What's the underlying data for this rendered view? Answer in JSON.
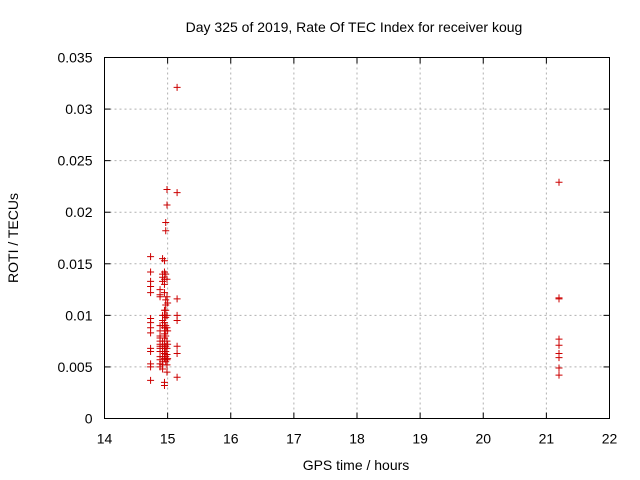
{
  "chart_data": {
    "type": "scatter",
    "title": "Day 325 of 2019, Rate Of TEC Index for receiver koug",
    "xlabel": "GPS time / hours",
    "ylabel": "ROTI / TECUs",
    "xlim": [
      14,
      22
    ],
    "ylim": [
      0,
      0.035
    ],
    "grid": true,
    "marker": "+",
    "color": "#cc0000",
    "x_ticks": [
      14,
      15,
      16,
      17,
      18,
      19,
      20,
      21,
      22
    ],
    "x_tick_labels": [
      "14",
      "15",
      "16",
      "17",
      "18",
      "19",
      "20",
      "21",
      "22"
    ],
    "y_ticks": [
      0,
      0.005,
      0.01,
      0.015,
      0.02,
      0.025,
      0.03,
      0.035
    ],
    "y_tick_labels": [
      "0",
      "0.005",
      "0.01",
      "0.015",
      "0.02",
      "0.025",
      "0.03",
      "0.035"
    ],
    "series": [
      {
        "name": "koug",
        "x": [
          14.73,
          14.73,
          14.73,
          14.73,
          14.73,
          14.73,
          14.73,
          14.73,
          14.73,
          14.73,
          14.73,
          14.73,
          14.73,
          14.73,
          14.88,
          14.88,
          14.88,
          14.88,
          14.88,
          14.88,
          14.88,
          14.88,
          14.88,
          14.88,
          14.88,
          14.88,
          14.88,
          14.88,
          14.88,
          14.88,
          14.92,
          14.92,
          14.92,
          14.92,
          14.92,
          14.92,
          14.92,
          14.92,
          14.92,
          14.92,
          14.92,
          14.92,
          14.92,
          14.92,
          14.95,
          14.95,
          14.95,
          14.95,
          14.95,
          14.95,
          14.95,
          14.95,
          14.95,
          14.95,
          14.95,
          14.95,
          14.95,
          14.95,
          14.95,
          14.95,
          14.95,
          14.97,
          14.97,
          14.97,
          14.97,
          14.97,
          14.97,
          14.97,
          14.97,
          14.97,
          14.97,
          14.97,
          14.97,
          14.97,
          14.97,
          14.99,
          14.99,
          14.99,
          14.99,
          14.99,
          14.99,
          14.99,
          14.99,
          14.99,
          14.99,
          14.99,
          14.99,
          15.0,
          15.0,
          15.0,
          15.0,
          15.15,
          15.15,
          15.15,
          15.15,
          15.15,
          15.15,
          15.15,
          15.15,
          21.2,
          21.2,
          21.2,
          21.2,
          21.2,
          21.2,
          21.2,
          21.2,
          21.2
        ],
        "y": [
          0.0157,
          0.0142,
          0.0133,
          0.0128,
          0.0122,
          0.0097,
          0.0093,
          0.0088,
          0.0083,
          0.0068,
          0.0065,
          0.0053,
          0.005,
          0.0037,
          0.0125,
          0.012,
          0.0118,
          0.009,
          0.0085,
          0.008,
          0.0078,
          0.0075,
          0.0072,
          0.007,
          0.0068,
          0.0065,
          0.006,
          0.0057,
          0.0053,
          0.005,
          0.0155,
          0.014,
          0.0137,
          0.0133,
          0.01,
          0.0095,
          0.009,
          0.0075,
          0.007,
          0.0065,
          0.006,
          0.0055,
          0.0052,
          0.0048,
          0.0153,
          0.0142,
          0.0135,
          0.013,
          0.0122,
          0.0105,
          0.01,
          0.0093,
          0.0088,
          0.0082,
          0.0078,
          0.0072,
          0.0068,
          0.0063,
          0.0058,
          0.0035,
          0.0032,
          0.019,
          0.0182,
          0.014,
          0.0115,
          0.011,
          0.0105,
          0.0098,
          0.009,
          0.0085,
          0.008,
          0.007,
          0.0065,
          0.006,
          0.0055,
          0.0222,
          0.0207,
          0.0135,
          0.0118,
          0.01,
          0.0088,
          0.0075,
          0.0068,
          0.0062,
          0.0057,
          0.0052,
          0.0045,
          0.0112,
          0.0085,
          0.0072,
          0.0058,
          0.0321,
          0.0219,
          0.0116,
          0.01,
          0.0095,
          0.007,
          0.0063,
          0.004,
          0.0229,
          0.0117,
          0.0116,
          0.0077,
          0.0071,
          0.0063,
          0.0059,
          0.0049,
          0.0042
        ]
      }
    ]
  }
}
